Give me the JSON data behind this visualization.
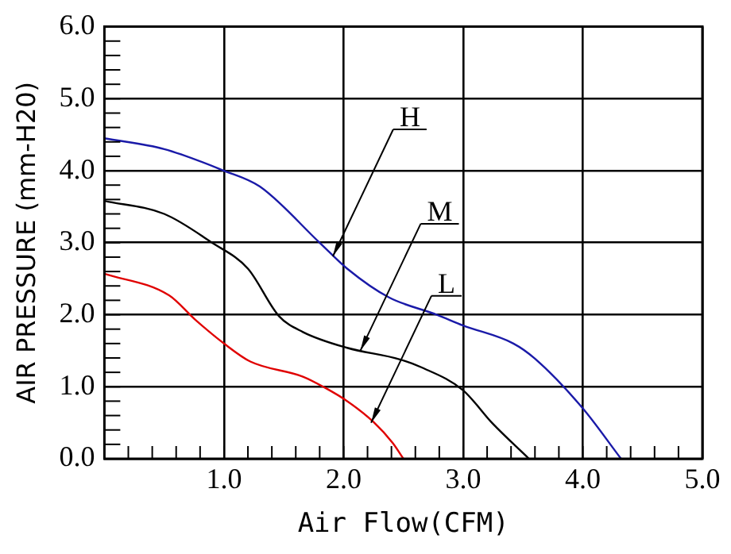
{
  "chart_data": {
    "type": "line",
    "xlabel": "Air Flow(CFM)",
    "ylabel": "AIR PRESSURE (mm-H20)",
    "xlim": [
      0,
      5
    ],
    "ylim": [
      0,
      6
    ],
    "xticks": [
      {
        "value": 0.2,
        "label": null
      },
      {
        "value": 0.4,
        "label": null
      },
      {
        "value": 0.6,
        "label": null
      },
      {
        "value": 0.8,
        "label": null
      },
      {
        "value": 1,
        "label": "1.0"
      },
      {
        "value": 1.2,
        "label": null
      },
      {
        "value": 1.4,
        "label": null
      },
      {
        "value": 1.6,
        "label": null
      },
      {
        "value": 1.8,
        "label": null
      },
      {
        "value": 2,
        "label": "2.0"
      },
      {
        "value": 2.2,
        "label": null
      },
      {
        "value": 2.4,
        "label": null
      },
      {
        "value": 2.6,
        "label": null
      },
      {
        "value": 2.8,
        "label": null
      },
      {
        "value": 3,
        "label": "3.0"
      },
      {
        "value": 3.2,
        "label": null
      },
      {
        "value": 3.4,
        "label": null
      },
      {
        "value": 3.6,
        "label": null
      },
      {
        "value": 3.8,
        "label": null
      },
      {
        "value": 4,
        "label": "4.0"
      },
      {
        "value": 4.2,
        "label": null
      },
      {
        "value": 4.4,
        "label": null
      },
      {
        "value": 4.6,
        "label": null
      },
      {
        "value": 4.8,
        "label": null
      },
      {
        "value": 5,
        "label": "5.0"
      }
    ],
    "yticks": [
      {
        "value": 0,
        "label": "0.0"
      },
      {
        "value": 0.2,
        "label": null
      },
      {
        "value": 0.4,
        "label": null
      },
      {
        "value": 0.6,
        "label": null
      },
      {
        "value": 0.8,
        "label": null
      },
      {
        "value": 1,
        "label": "1.0"
      },
      {
        "value": 1.2,
        "label": null
      },
      {
        "value": 1.4,
        "label": null
      },
      {
        "value": 1.6,
        "label": null
      },
      {
        "value": 1.8,
        "label": null
      },
      {
        "value": 2,
        "label": "2.0"
      },
      {
        "value": 2.2,
        "label": null
      },
      {
        "value": 2.4,
        "label": null
      },
      {
        "value": 2.6,
        "label": null
      },
      {
        "value": 2.8,
        "label": null
      },
      {
        "value": 3,
        "label": "3.0"
      },
      {
        "value": 3.2,
        "label": null
      },
      {
        "value": 3.4,
        "label": null
      },
      {
        "value": 3.6,
        "label": null
      },
      {
        "value": 3.8,
        "label": null
      },
      {
        "value": 4,
        "label": "4.0"
      },
      {
        "value": 4.2,
        "label": null
      },
      {
        "value": 4.4,
        "label": null
      },
      {
        "value": 4.6,
        "label": null
      },
      {
        "value": 4.8,
        "label": null
      },
      {
        "value": 5,
        "label": "5.0"
      },
      {
        "value": 5.2,
        "label": null
      },
      {
        "value": 5.4,
        "label": null
      },
      {
        "value": 5.6,
        "label": null
      },
      {
        "value": 5.8,
        "label": null
      },
      {
        "value": 6,
        "label": "6.0"
      }
    ],
    "grid": true,
    "legend": false,
    "marker": "none",
    "line_style": "solid",
    "series": [
      {
        "color": "#1a1aa8",
        "x": [
          0,
          0.5,
          1.0,
          1.3,
          1.8,
          2.03,
          2.38,
          2.78,
          3.0,
          3.42,
          3.6,
          4.0,
          4.32
        ],
        "values": [
          4.45,
          4.3,
          4.0,
          3.78,
          3.0,
          2.64,
          2.24,
          2.0,
          1.85,
          1.6,
          1.39,
          0.7,
          0
        ]
      },
      {
        "color": "#000000",
        "x": [
          0,
          0.5,
          0.9,
          1.2,
          1.46,
          1.66,
          2.03,
          2.47,
          2.65,
          3.0,
          3.24,
          3.55
        ],
        "values": [
          3.58,
          3.4,
          3.0,
          2.64,
          1.98,
          1.76,
          1.54,
          1.38,
          1.27,
          0.95,
          0.5,
          0
        ]
      },
      {
        "color": "#e00000",
        "x": [
          0,
          0.54,
          0.76,
          1.0,
          1.22,
          1.66,
          1.84,
          2.03,
          2.25,
          2.41,
          2.5
        ],
        "values": [
          2.57,
          2.27,
          1.93,
          1.6,
          1.35,
          1.14,
          0.99,
          0.8,
          0.51,
          0.22,
          0
        ]
      }
    ],
    "annotations": [
      {
        "text": "H",
        "x": 1.91,
        "y": 2.81
      },
      {
        "text": "M",
        "x": 2.14,
        "y": 1.5
      },
      {
        "text": "L",
        "x": 2.23,
        "y": 0.5
      }
    ]
  }
}
